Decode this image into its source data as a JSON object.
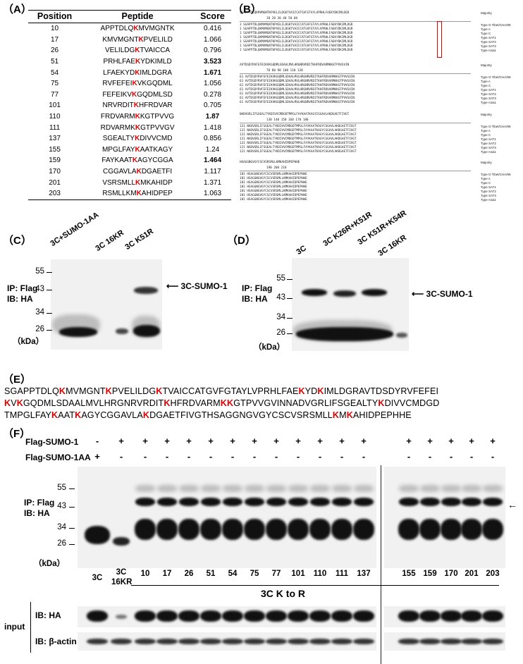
{
  "panelA": {
    "label": "（A）",
    "headers": [
      "Position",
      "Peptide",
      "Score"
    ],
    "rows": [
      {
        "pos": "10",
        "pre": "APPTDLQ",
        "k": "K",
        "post": "MVMGNTK",
        "score": "0.416",
        "bold": false
      },
      {
        "pos": "17",
        "pre": "KMVMGNT",
        "k": "K",
        "post": "PVELILD",
        "score": "1.066",
        "bold": false
      },
      {
        "pos": "26",
        "pre": "VELILDG",
        "k": "K",
        "post": "TVAICCA",
        "score": "0.796",
        "bold": false
      },
      {
        "pos": "51",
        "pre": "PRHLFAE",
        "k": "K",
        "post": "YDKIMLD",
        "score": "3.523",
        "bold": true
      },
      {
        "pos": "54",
        "pre": "LFAEKYD",
        "k": "K",
        "post": "IMLDGRA",
        "score": "1.671",
        "bold": true
      },
      {
        "pos": "75",
        "pre": "RVFEFEI",
        "k": "K",
        "post": "VKGQDML",
        "score": "1.056",
        "bold": false
      },
      {
        "pos": "77",
        "pre": "FEFEIKV",
        "k": "K",
        "post": "GQDMLSD",
        "score": "0.278",
        "bold": false
      },
      {
        "pos": "101",
        "pre": "NRVRDIT",
        "k": "K",
        "post": "HFRDVAR",
        "score": "0.705",
        "bold": false
      },
      {
        "pos": "110",
        "pre": "FRDVARM",
        "k": "K",
        "post": "KGTPVVG",
        "score": "1.87",
        "bold": true
      },
      {
        "pos": "111",
        "pre": "RDVARMK",
        "k": "K",
        "post": "GTPVVGV",
        "score": "1.418",
        "bold": false
      },
      {
        "pos": "137",
        "pre": "SGEALTY",
        "k": "K",
        "post": "DIVVCMD",
        "score": "0.856",
        "bold": false
      },
      {
        "pos": "155",
        "pre": "MPGLFAY",
        "k": "K",
        "post": "AATKAGY",
        "score": "1.24",
        "bold": false
      },
      {
        "pos": "159",
        "pre": "FAYKAAT",
        "k": "K",
        "post": "AGYCGGA",
        "score": "1.464",
        "bold": true
      },
      {
        "pos": "170",
        "pre": "CGGAVLA",
        "k": "K",
        "post": "DGAETFI",
        "score": "1.117",
        "bold": false
      },
      {
        "pos": "201",
        "pre": "VSRSMLL",
        "k": "K",
        "post": "MKAHIDP",
        "score": "1.371",
        "bold": false
      },
      {
        "pos": "203",
        "pre": "RSMLLKM",
        "k": "K",
        "post": "AHIDPEP",
        "score": "1.063",
        "bold": false
      }
    ]
  },
  "panelB": {
    "label": "（B）",
    "blocks": [
      {
        "consensus": "SGAPPTDLQKMVMGNTKPVELILDGKTVAICCATGVFGTAYLVPRHLFAEKYDKIMLDGR",
        "ruler": "10          20          30          40          50          60",
        "rows": [
          "1  SGAPPTDLQKMVMGNTKPVELILDGKTVAICCATGVFGTAYLVPRHLFAEKYDKIMLDGR",
          "1  SGAPPTDLQKMVMGNTKPVELILDGKTVAICCATGVFGTAYLVPRHLFAEKYDKIMLDGR",
          "1  SGAPPTDLQKMVMGNTKPVELILDGKTVAICCATGVFGTAYLVPRHLFAEKYDKIMLDGR",
          "1  SGAPPTDLQKMVMGNTKPVELILDGKTVAICCATGVFGTAYLVPRHLFAEKYDKIMLDGR",
          "1  SGAPPTDLQKMVMGNTKPVELILDGKTVAICCATGVFGTAYLVPRHLFAEKYDKIMLDGR",
          "1  SGAPPTDLQKMVMGNTKPVELILDGKTVAICCATGVFGTAYLVPRHLFAEKYDKIMLDGR",
          "1  SGAPPTDLQKMVMGNTKPVELILDGKTVAICCATGVFGTAYLVPRHLFAEKYDKIMLDGR"
        ]
      },
      {
        "consensus": "AVTDSDYRVFEFEIKVKGQDMLSDAALMVLHRGNRVRDITKHFRDVARMKKGTPVVGVIN",
        "ruler": "70          80          90          100         110         120",
        "rows": [
          "61 AVTDSDYRVFEFEIKVKGQDMLSDAALMVLHRGNRVRDITKHFRDVARMKKGTPVVGVIN",
          "61 AVTDSDYRVFEFEIKVKGQDMLSDAALMVLHRGNRVRDITKHFRDVARMKKGTPVVGVIN",
          "61 AVTDSDYRVFEFEIKVKGQDMLSDAALMVLHRGNRVRDITKHFRDVARMKKGTPVVGVIN",
          "61 AVTDSDYRVFEFEIKVKGQDMLSDAALMVLHRGNRVRDITKHFRDVARMKKGTPVVGVIN",
          "61 AVTDSDYRVFEFEIKVKGQDMLSDAALMVLHRGNRVRDITKHFRDVARMKKGTPVVGVIN",
          "61 AVTDSDYRVFEFEIKVKGQDMLSDAALMVLHRGNRVRDITKHFRDVARMKKGTPVVGVIN",
          "61 AVTDSDYRVFEFEIKVKGQDMLSDAALMVLHRGNRVRDITKHFRDVARMKKGTPVVGVIN"
        ]
      },
      {
        "consensus": "NADVGRLIFSGEALTYKDIVVCMDGDTMPGLFAYKAATKAGYCGGAVLAKDGAETFIVGT",
        "ruler": "130         140         150         160         170         180",
        "rows": [
          "121 NADVGRLIFSGEALTYKDIVVCMDGDTMPGLFAYKAATKAGYCGGAVLAKDGAETFIVGT",
          "121 NADVGRLIFSGEALTYKDIVVCMDGDTMPGLFAYKAATKAGYCGGAVLAKDGAETFIVGT",
          "121 NADVGRLIFSGEALTYKDIVVCMDGDTMPGLFAYKAATKAGYCGGAVLAKDGAETFIVGT",
          "121 NADVGRLIFSGEALTYKDIVVCMDGDTMPGLFAYKAATKAGYCGGAVLAKDGAETFIVGT",
          "121 NADVGRLIFSGEALTYKDIVVCMDGDTMPGLFAYKAATKAGYCGGAVLAKDGAETFIVGT",
          "121 NADVGRLIFSGEALTYKDIVVCMDGDTMPGLFAYKAATKAGYCGGAVLAKDGAETFIVGT",
          "121 NADVGRLIFSGEALTYKDIVVCMDGDTMPGLFAYKAATKAGYCGGAVLAKDGAETFIVGT"
        ]
      },
      {
        "consensus": "HSAGGNGVGYCSCVSRSMLLKMKAHIDPEPHHE",
        "ruler": "190         200         210",
        "rows": [
          "181 HSAGGNGVGYCSCVSRSMLLKMKAHIDPEPHHE",
          "181 HSAGGNGVGYCSCVSRSMLLKMKAHIDPEPHHE",
          "181 HSAGGNGVGYCSCVSRSMLLKMKAHIDPEPHHE",
          "181 HSAGGNGVGYCSCVSRSMLLKMKAHIDPEPHHE",
          "181 HSAGGNGVGYCSCVSRSMLLKMKAHIDPEPHHE",
          "181 HSAGGNGVGYCSCVSRSMLLKMKAHIDPEPHHE",
          "181 HSAGGNGVGYCSCVSRSMLLKMKAHIDPEPHHE"
        ]
      }
    ],
    "majority": "Majority",
    "types": [
      "Type O Tibet/CHA/99",
      "Type A",
      "Type C",
      "Type SAT1",
      "Type SAT2",
      "Type SAT3",
      "Type Asia1"
    ]
  },
  "panelC": {
    "label": "（C）",
    "lanes": [
      "3C+SUMO-1AA",
      "3C 16KR",
      "3C K51R"
    ],
    "ip": "IP: Flag",
    "ib": "IB: HA",
    "markers": [
      "55",
      "43",
      "34",
      "26"
    ],
    "kda": "（kDa）",
    "arrow_label": "3C-SUMO-1"
  },
  "panelD": {
    "label": "（D）",
    "lanes": [
      "3C",
      "3C K26R+K51R",
      "3C K51R+K54R",
      "3C 16KR"
    ],
    "ip": "IP: Flag",
    "ib": "IB: HA",
    "markers": [
      "55",
      "43",
      "34",
      "26"
    ],
    "kda": "（kDa）",
    "arrow_label": "3C-SUMO-1"
  },
  "panelE": {
    "label": "（E）",
    "line1": [
      [
        "SGAPPTDLQ",
        0
      ],
      [
        "K",
        1
      ],
      [
        "MVMGNT",
        0
      ],
      [
        "K",
        1
      ],
      [
        "PVELILDG",
        0
      ],
      [
        "K",
        1
      ],
      [
        "TVAICCATGVFGTAYLVPRHLFAE",
        0
      ],
      [
        "K",
        1
      ],
      [
        "YD",
        0
      ],
      [
        "K",
        1
      ],
      [
        "IMLDGRAVTDSDYRVFEFEI",
        0
      ]
    ],
    "line2": [
      [
        "K",
        1
      ],
      [
        "V",
        0
      ],
      [
        "K",
        1
      ],
      [
        "GQDMLSDAALMVLHRGNRVRDIT",
        0
      ],
      [
        "K",
        1
      ],
      [
        "HFRDVARM",
        0
      ],
      [
        "KK",
        1
      ],
      [
        "GTPVVGVINNADVGRLIFSGEALTY",
        0
      ],
      [
        "K",
        1
      ],
      [
        "DIVVCMDGD",
        0
      ]
    ],
    "line3": [
      [
        "TMPGLFAY",
        0
      ],
      [
        "K",
        1
      ],
      [
        "AAT",
        0
      ],
      [
        "K",
        1
      ],
      [
        "AGYCGGAVLA",
        0
      ],
      [
        "K",
        1
      ],
      [
        "DGAETFIVGTHSAGGNGVGYCSCVSRSMLL",
        0
      ],
      [
        "K",
        1
      ],
      [
        "M",
        0
      ],
      [
        "K",
        1
      ],
      [
        "AHIDPEPHHE",
        0
      ]
    ]
  },
  "panelF": {
    "label": "（F）",
    "row1_label": "Flag-SUMO-1",
    "row2_label": "Flag-SUMO-1AA",
    "row1_signs": [
      "-",
      "+",
      "+",
      "+",
      "+",
      "+",
      "+",
      "+",
      "+",
      "+",
      "+",
      "+",
      "+",
      "+",
      "+",
      "+",
      "+",
      "+"
    ],
    "row2_signs": [
      "+",
      "-",
      "-",
      "-",
      "-",
      "-",
      "-",
      "-",
      "-",
      "-",
      "-",
      "-",
      "-",
      "-",
      "-",
      "-",
      "-",
      "-"
    ],
    "ip": "IP: Flag",
    "ib": "IB: HA",
    "markers": [
      "55",
      "43",
      "34",
      "26"
    ],
    "kda": "（kDa）",
    "lane_3c": "3C",
    "lane_16kr_1": "3C",
    "lane_16kr_2": "16KR",
    "positions": [
      "10",
      "17",
      "26",
      "51",
      "54",
      "75",
      "77",
      "101",
      "110",
      "111",
      "137",
      "155",
      "159",
      "170",
      "201",
      "203"
    ],
    "k_to_r": "3C K to R",
    "input": "input",
    "ib_ha": "IB: HA",
    "ib_actin": "IB: β-actin",
    "arrow": "←"
  }
}
